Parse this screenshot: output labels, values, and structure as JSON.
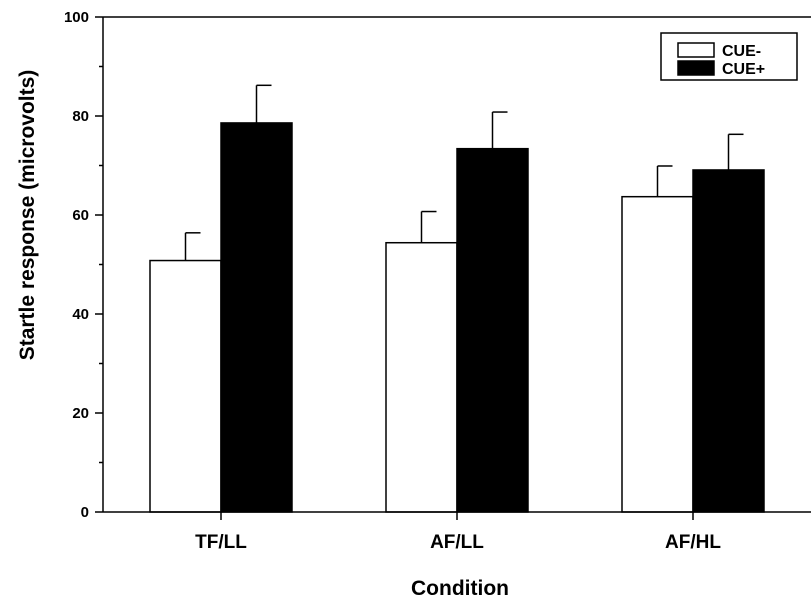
{
  "chart_data": {
    "type": "bar",
    "title": "",
    "xlabel": "Condition",
    "ylabel": "Startle response (microvolts)",
    "categories": [
      "TF/LL",
      "AF/LL",
      "AF/HL"
    ],
    "ylim": [
      0,
      100
    ],
    "yticks": [
      0,
      20,
      40,
      60,
      80,
      100
    ],
    "series": [
      {
        "name": "CUE-",
        "color": "#ffffff",
        "values": [
          50.8,
          54.4,
          63.7
        ],
        "errors": [
          5.6,
          6.3,
          6.2
        ]
      },
      {
        "name": "CUE+",
        "color": "#000000",
        "values": [
          78.6,
          73.4,
          69.1
        ],
        "errors": [
          7.6,
          7.4,
          7.2
        ]
      }
    ],
    "legend": "top-right",
    "grid": false
  }
}
